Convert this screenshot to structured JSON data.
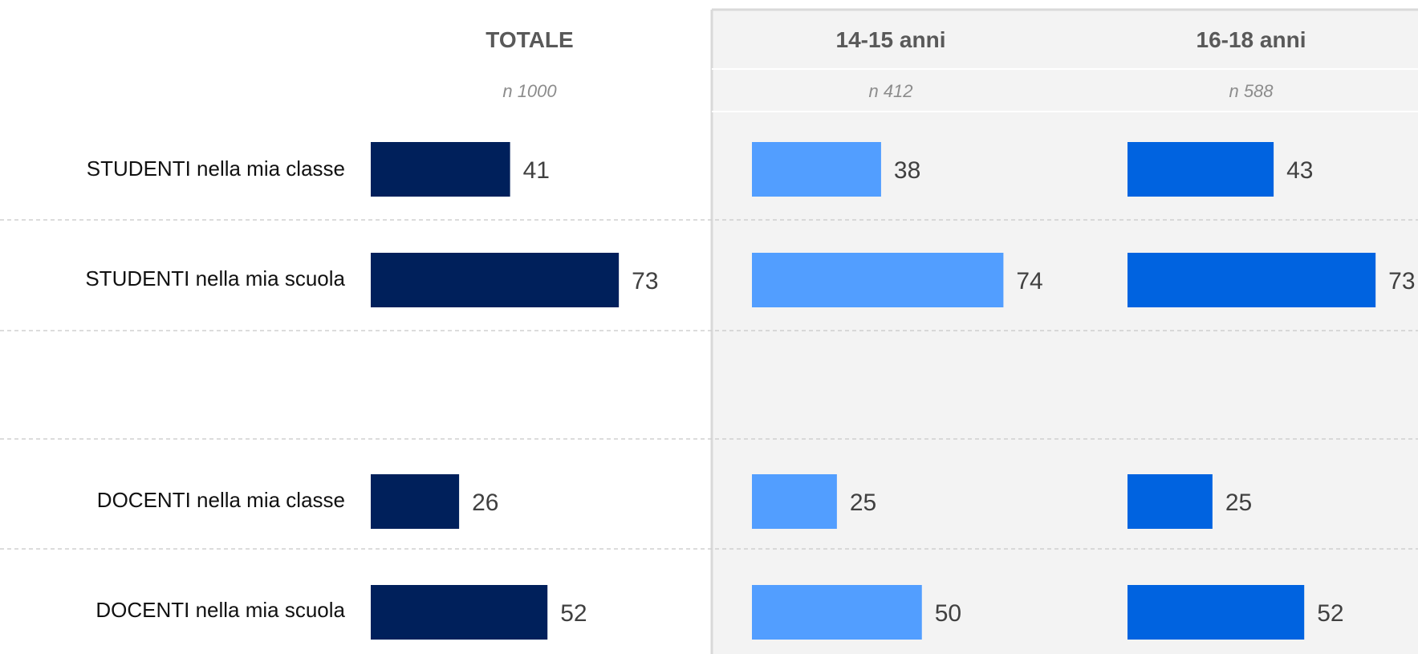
{
  "chart_data": {
    "type": "bar",
    "orientation": "horizontal",
    "title": "",
    "xlabel": "",
    "ylabel": "",
    "xlim": [
      0,
      100
    ],
    "grid": false,
    "legend": "none",
    "categories": [
      "STUDENTI nella mia classe",
      "STUDENTI nella mia scuola",
      "DOCENTI nella mia classe",
      "DOCENTI nella mia scuola"
    ],
    "series": [
      {
        "name": "TOTALE",
        "n_label": "n 1000",
        "color": "#00205b",
        "values": [
          41,
          73,
          26,
          52
        ]
      },
      {
        "name": "14-15 anni",
        "n_label": "n 412",
        "color": "#529eff",
        "values": [
          38,
          74,
          25,
          50
        ]
      },
      {
        "name": "16-18 anni",
        "n_label": "n 588",
        "color": "#0063e0",
        "values": [
          43,
          73,
          25,
          52
        ]
      }
    ]
  },
  "colors": {
    "panel_bg": "#f3f3f3",
    "divider": "#d9d9d9",
    "header_text": "#595959",
    "n_text": "#8c8c8c"
  }
}
